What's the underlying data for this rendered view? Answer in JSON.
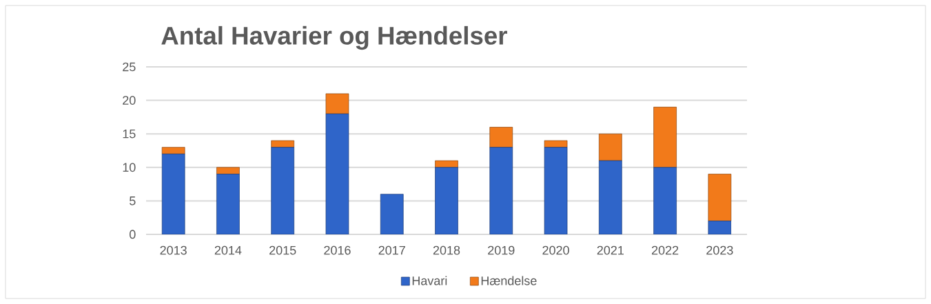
{
  "chart_data": {
    "type": "bar",
    "title": "Antal Havarier og Hændelser",
    "categories": [
      "2013",
      "2014",
      "2015",
      "2016",
      "2017",
      "2018",
      "2019",
      "2020",
      "2021",
      "2022",
      "2023"
    ],
    "series": [
      {
        "name": "Havari",
        "color": "#2f65c9",
        "values": [
          12,
          9,
          13,
          18,
          6,
          10,
          13,
          13,
          11,
          10,
          2
        ]
      },
      {
        "name": "Hændelse",
        "color": "#f27a1a",
        "values": [
          1,
          1,
          1,
          3,
          0,
          1,
          3,
          1,
          4,
          9,
          7
        ]
      }
    ],
    "stacked": true,
    "ylim": [
      0,
      25
    ],
    "yticks": [
      0,
      5,
      10,
      15,
      20,
      25
    ],
    "grid": "y",
    "legend": "bottom"
  }
}
